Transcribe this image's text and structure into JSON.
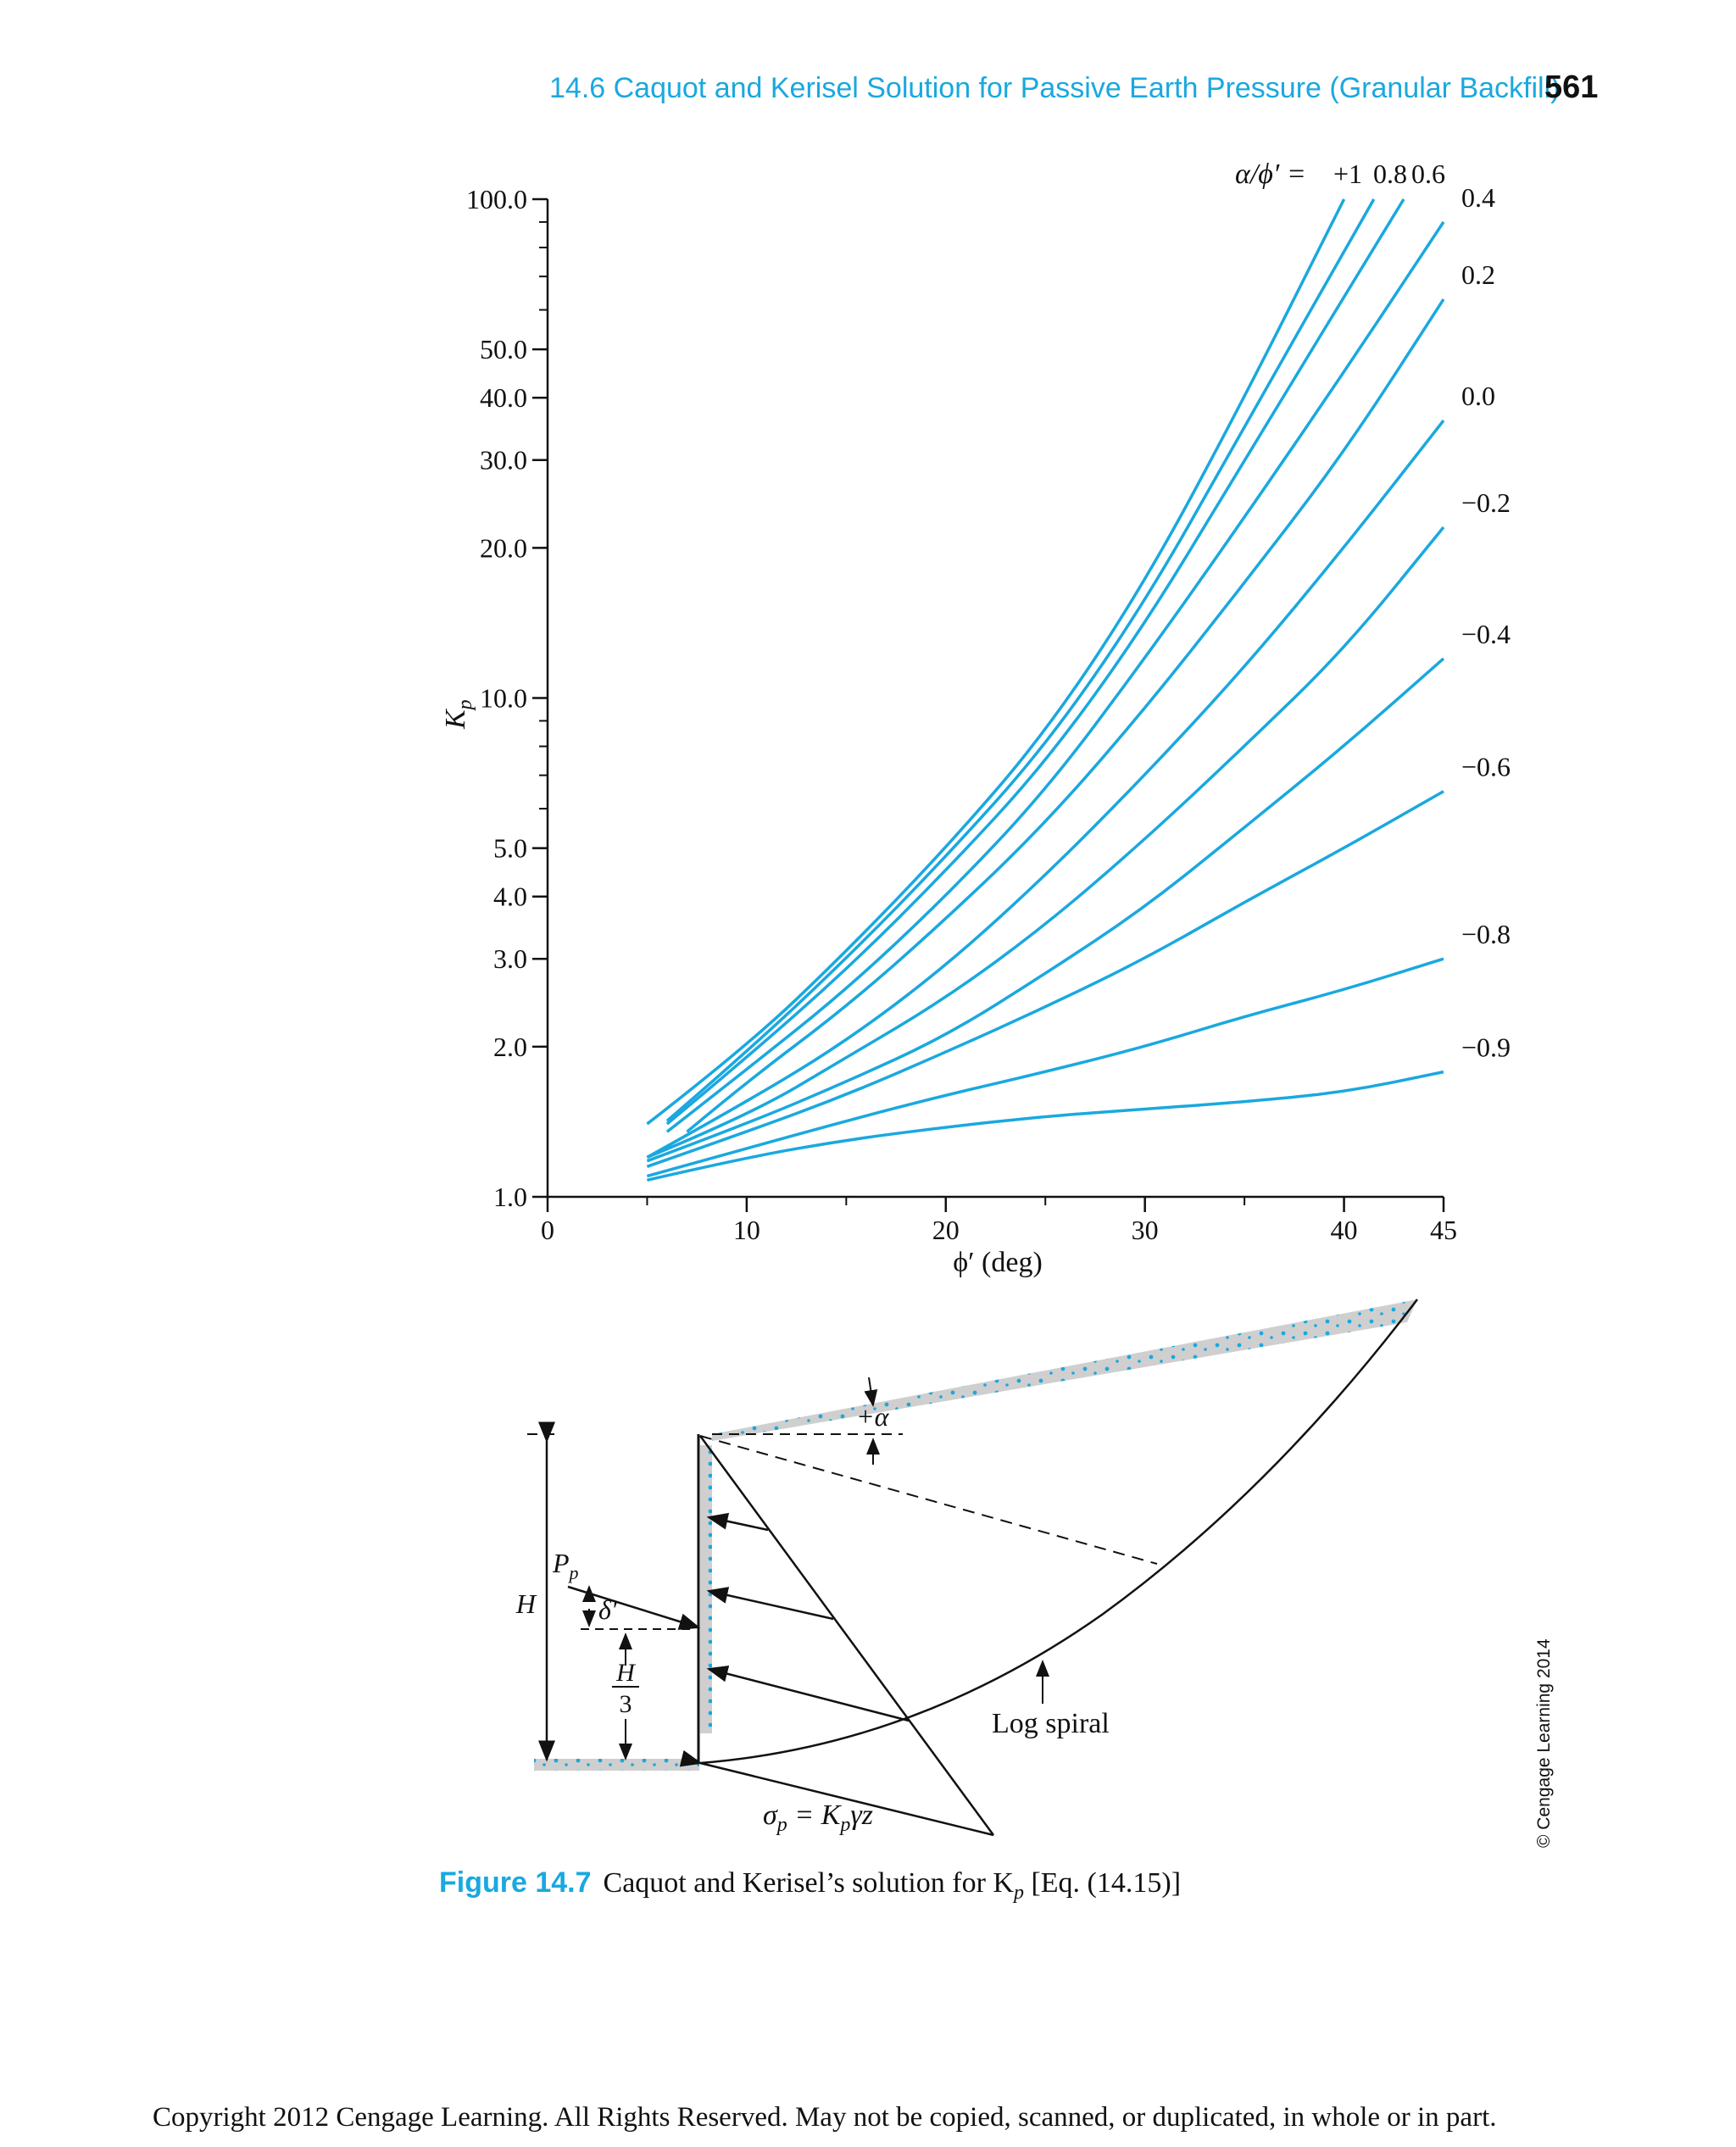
{
  "header": {
    "running_head": "14.6 Caquot and Kerisel Solution for Passive Earth Pressure (Granular Backfill)",
    "page_number": "561"
  },
  "chart_data": {
    "type": "line",
    "y_scale": "log",
    "ylabel": "K",
    "ylabel_subscript": "p",
    "xlabel": "ϕ′ (deg)",
    "xlim": [
      0,
      45
    ],
    "ylim": [
      1,
      100
    ],
    "x_ticks": [
      0,
      10,
      20,
      30,
      40,
      45
    ],
    "y_ticks": [
      1,
      2,
      3,
      4,
      5,
      10,
      20,
      30,
      40,
      50,
      100
    ],
    "y_tick_labels": [
      "1.0",
      "2.0",
      "3.0",
      "4.0",
      "5.0",
      "10.0",
      "20.0",
      "30.0",
      "40.0",
      "50.0",
      "100.0"
    ],
    "legend_title": "α/ϕ′ =",
    "grid": false,
    "line_color": "#1aa8df",
    "series": [
      {
        "name": "+1",
        "x": [
          5,
          10,
          15,
          20,
          25,
          30,
          35,
          40
        ],
        "y": [
          1.4,
          2.0,
          3.1,
          5.0,
          8.5,
          17,
          40,
          100
        ]
      },
      {
        "name": "0.8",
        "x": [
          6,
          10,
          15,
          20,
          25,
          30,
          35,
          41.5
        ],
        "y": [
          1.42,
          1.95,
          3.0,
          4.8,
          8.0,
          15.5,
          35,
          100
        ]
      },
      {
        "name": "0.6",
        "x": [
          6,
          10,
          15,
          20,
          25,
          30,
          35,
          43
        ],
        "y": [
          1.4,
          1.9,
          2.85,
          4.5,
          7.4,
          14,
          30,
          100
        ]
      },
      {
        "name": "0.4",
        "x": [
          6,
          10,
          15,
          20,
          25,
          30,
          35,
          40,
          45
        ],
        "y": [
          1.35,
          1.8,
          2.6,
          4.0,
          6.5,
          12,
          23,
          45,
          90
        ]
      },
      {
        "name": "0.2",
        "x": [
          7,
          10,
          15,
          20,
          25,
          30,
          35,
          40,
          45
        ],
        "y": [
          1.35,
          1.7,
          2.4,
          3.6,
          5.6,
          9.5,
          17,
          31,
          63
        ]
      },
      {
        "name": "0.0",
        "x": [
          5,
          10,
          15,
          20,
          25,
          30,
          35,
          40,
          45
        ],
        "y": [
          1.2,
          1.55,
          2.05,
          2.9,
          4.4,
          7.0,
          11.5,
          20,
          36
        ]
      },
      {
        "name": "−0.2",
        "x": [
          5,
          10,
          15,
          20,
          25,
          30,
          35,
          40,
          45
        ],
        "y": [
          1.2,
          1.45,
          1.9,
          2.5,
          3.5,
          5.2,
          8.0,
          12.5,
          22
        ]
      },
      {
        "name": "−0.4",
        "x": [
          5,
          10,
          15,
          20,
          25,
          30,
          35,
          40,
          45
        ],
        "y": [
          1.18,
          1.4,
          1.7,
          2.1,
          2.8,
          3.8,
          5.5,
          8.0,
          12
        ]
      },
      {
        "name": "−0.6",
        "x": [
          5,
          10,
          15,
          20,
          25,
          30,
          35,
          40,
          45
        ],
        "y": [
          1.15,
          1.35,
          1.6,
          1.95,
          2.4,
          3.0,
          3.9,
          5.0,
          6.5
        ]
      },
      {
        "name": "−0.8",
        "x": [
          5,
          10,
          15,
          20,
          25,
          30,
          35,
          40,
          45
        ],
        "y": [
          1.1,
          1.25,
          1.42,
          1.6,
          1.78,
          2.0,
          2.3,
          2.6,
          3.0
        ]
      },
      {
        "name": "−0.9",
        "x": [
          5,
          10,
          15,
          20,
          25,
          30,
          35,
          40,
          45
        ],
        "y": [
          1.08,
          1.2,
          1.3,
          1.38,
          1.45,
          1.5,
          1.55,
          1.62,
          1.78
        ]
      }
    ]
  },
  "diagram": {
    "alpha_label": "+α",
    "pp_label": "P",
    "pp_subscript": "p",
    "delta_label": "δ′",
    "h_label": "H",
    "h3_numerator": "H",
    "h3_denominator": "3",
    "log_spiral_label": "Log spiral",
    "sigma_label": "σ",
    "sigma_subscript": "p",
    "sigma_equals": " = K",
    "sigma_k_subscript": "p",
    "sigma_tail": "γz"
  },
  "caption": {
    "figure_label": "Figure 14.7",
    "text": "Caquot and Kerisel’s solution for K",
    "text_subscript": "p",
    "text_tail": " [Eq. (14.15)]"
  },
  "credit": "© Cengage Learning 2014",
  "footer": {
    "copyright": "Copyright 2012 Cengage Learning. All Rights Reserved. May not be copied, scanned, or duplicated, in whole or in part."
  }
}
